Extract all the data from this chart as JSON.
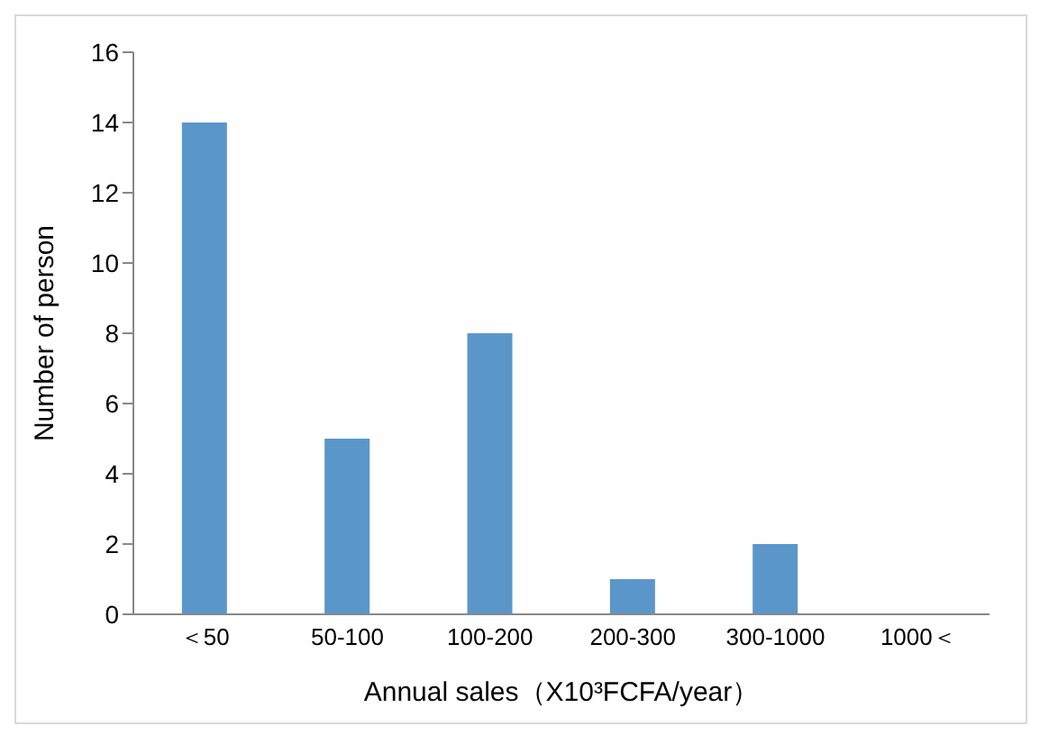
{
  "chart_data": {
    "type": "bar",
    "xlabel": "Annual sales（X10³FCFA/year）",
    "ylabel": "Number of person",
    "categories": [
      "＜50",
      "50-100",
      "100-200",
      "200-300",
      "300-1000",
      "1000＜"
    ],
    "values": [
      14,
      5,
      8,
      1,
      2,
      0
    ],
    "color": "#5b96cb",
    "ylim": [
      0,
      16
    ],
    "yticks": [
      0,
      2,
      4,
      6,
      8,
      10,
      12,
      14,
      16
    ],
    "grid": false
  }
}
